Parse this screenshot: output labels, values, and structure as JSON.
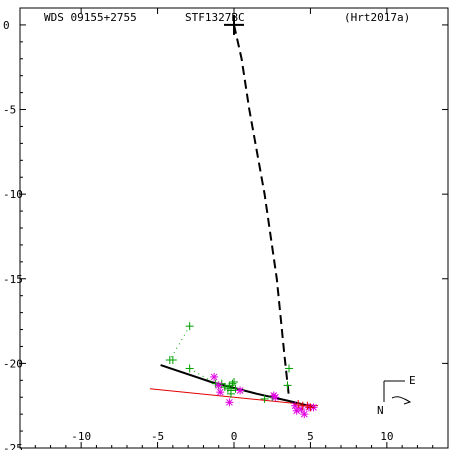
{
  "header": {
    "wds": "WDS 09155+2755",
    "pair": "STF1327BC",
    "ref": "(Hrt2017a)"
  },
  "compass": {
    "east": "E",
    "north": "N"
  },
  "colors": {
    "frame": "#000000",
    "orbit": "#000000",
    "linear_fit": "#e00000",
    "obs_green": "#00a000",
    "obs_magenta": "#e000e0",
    "obs_red": "#e00000"
  },
  "chart_data": {
    "type": "scatter",
    "title": "",
    "xlabel": "",
    "ylabel": "",
    "xlim": [
      -14,
      14
    ],
    "ylim": [
      1,
      -25
    ],
    "x_ticks": [
      -10,
      -5,
      0,
      5,
      10
    ],
    "y_ticks": [
      0,
      -5,
      -10,
      -15,
      -20,
      -25
    ],
    "primary_star": {
      "x": 0,
      "y": 0
    },
    "orbit_arc": {
      "style": "solid",
      "points": [
        [
          -4.8,
          -20.1
        ],
        [
          -1.5,
          -21.1
        ],
        [
          1.5,
          -21.8
        ],
        [
          3.5,
          -22.2
        ],
        [
          5.3,
          -22.6
        ]
      ]
    },
    "linear_fit": {
      "style": "solid",
      "points": [
        [
          -5.5,
          -21.5
        ],
        [
          5.5,
          -22.5
        ]
      ]
    },
    "predicted_connector": {
      "style": "dashed",
      "points": [
        [
          0.0,
          0.0
        ],
        [
          0.5,
          -2.0
        ],
        [
          1.0,
          -5.0
        ],
        [
          2.0,
          -10.0
        ],
        [
          2.8,
          -15.0
        ],
        [
          3.3,
          -19.5
        ],
        [
          3.6,
          -22.0
        ]
      ]
    },
    "series": [
      {
        "marker": "plus",
        "color": "green",
        "points": [
          [
            -2.9,
            -17.8
          ],
          [
            -4.2,
            -19.8
          ],
          [
            -4.0,
            -19.8
          ],
          [
            -2.9,
            -20.3
          ],
          [
            -1.2,
            -21.2
          ],
          [
            -1.0,
            -21.3
          ],
          [
            -0.8,
            -21.2
          ],
          [
            -0.6,
            -21.4
          ],
          [
            -0.4,
            -21.5
          ],
          [
            -0.3,
            -21.3
          ],
          [
            -0.2,
            -21.6
          ],
          [
            -0.1,
            -21.2
          ],
          [
            0.0,
            -21.1
          ],
          [
            0.1,
            -21.5
          ],
          [
            -0.2,
            -21.8
          ],
          [
            3.6,
            -20.3
          ],
          [
            3.5,
            -21.3
          ],
          [
            2.5,
            -22.0
          ],
          [
            2.0,
            -22.1
          ]
        ]
      },
      {
        "marker": "asterisk",
        "color": "magenta",
        "points": [
          [
            -1.3,
            -20.8
          ],
          [
            -1.0,
            -21.3
          ],
          [
            -0.9,
            -21.7
          ],
          [
            -0.3,
            -22.3
          ],
          [
            0.4,
            -21.6
          ],
          [
            2.6,
            -21.9
          ],
          [
            2.7,
            -22.0
          ],
          [
            4.0,
            -22.5
          ],
          [
            4.1,
            -22.8
          ],
          [
            4.4,
            -22.7
          ],
          [
            4.6,
            -23.0
          ],
          [
            4.9,
            -22.6
          ],
          [
            5.2,
            -22.6
          ]
        ]
      },
      {
        "marker": "plus",
        "color": "red",
        "points": [
          [
            4.2,
            -22.4
          ],
          [
            4.5,
            -22.5
          ],
          [
            4.8,
            -22.5
          ],
          [
            5.0,
            -22.6
          ]
        ]
      }
    ],
    "obs_tracks": [
      {
        "style": "dotted",
        "color": "green",
        "points": [
          [
            -2.9,
            -17.8
          ],
          [
            -4.2,
            -19.8
          ]
        ]
      },
      {
        "style": "dotted",
        "color": "green",
        "points": [
          [
            -2.9,
            -20.3
          ],
          [
            -1.2,
            -21.2
          ]
        ]
      }
    ]
  }
}
